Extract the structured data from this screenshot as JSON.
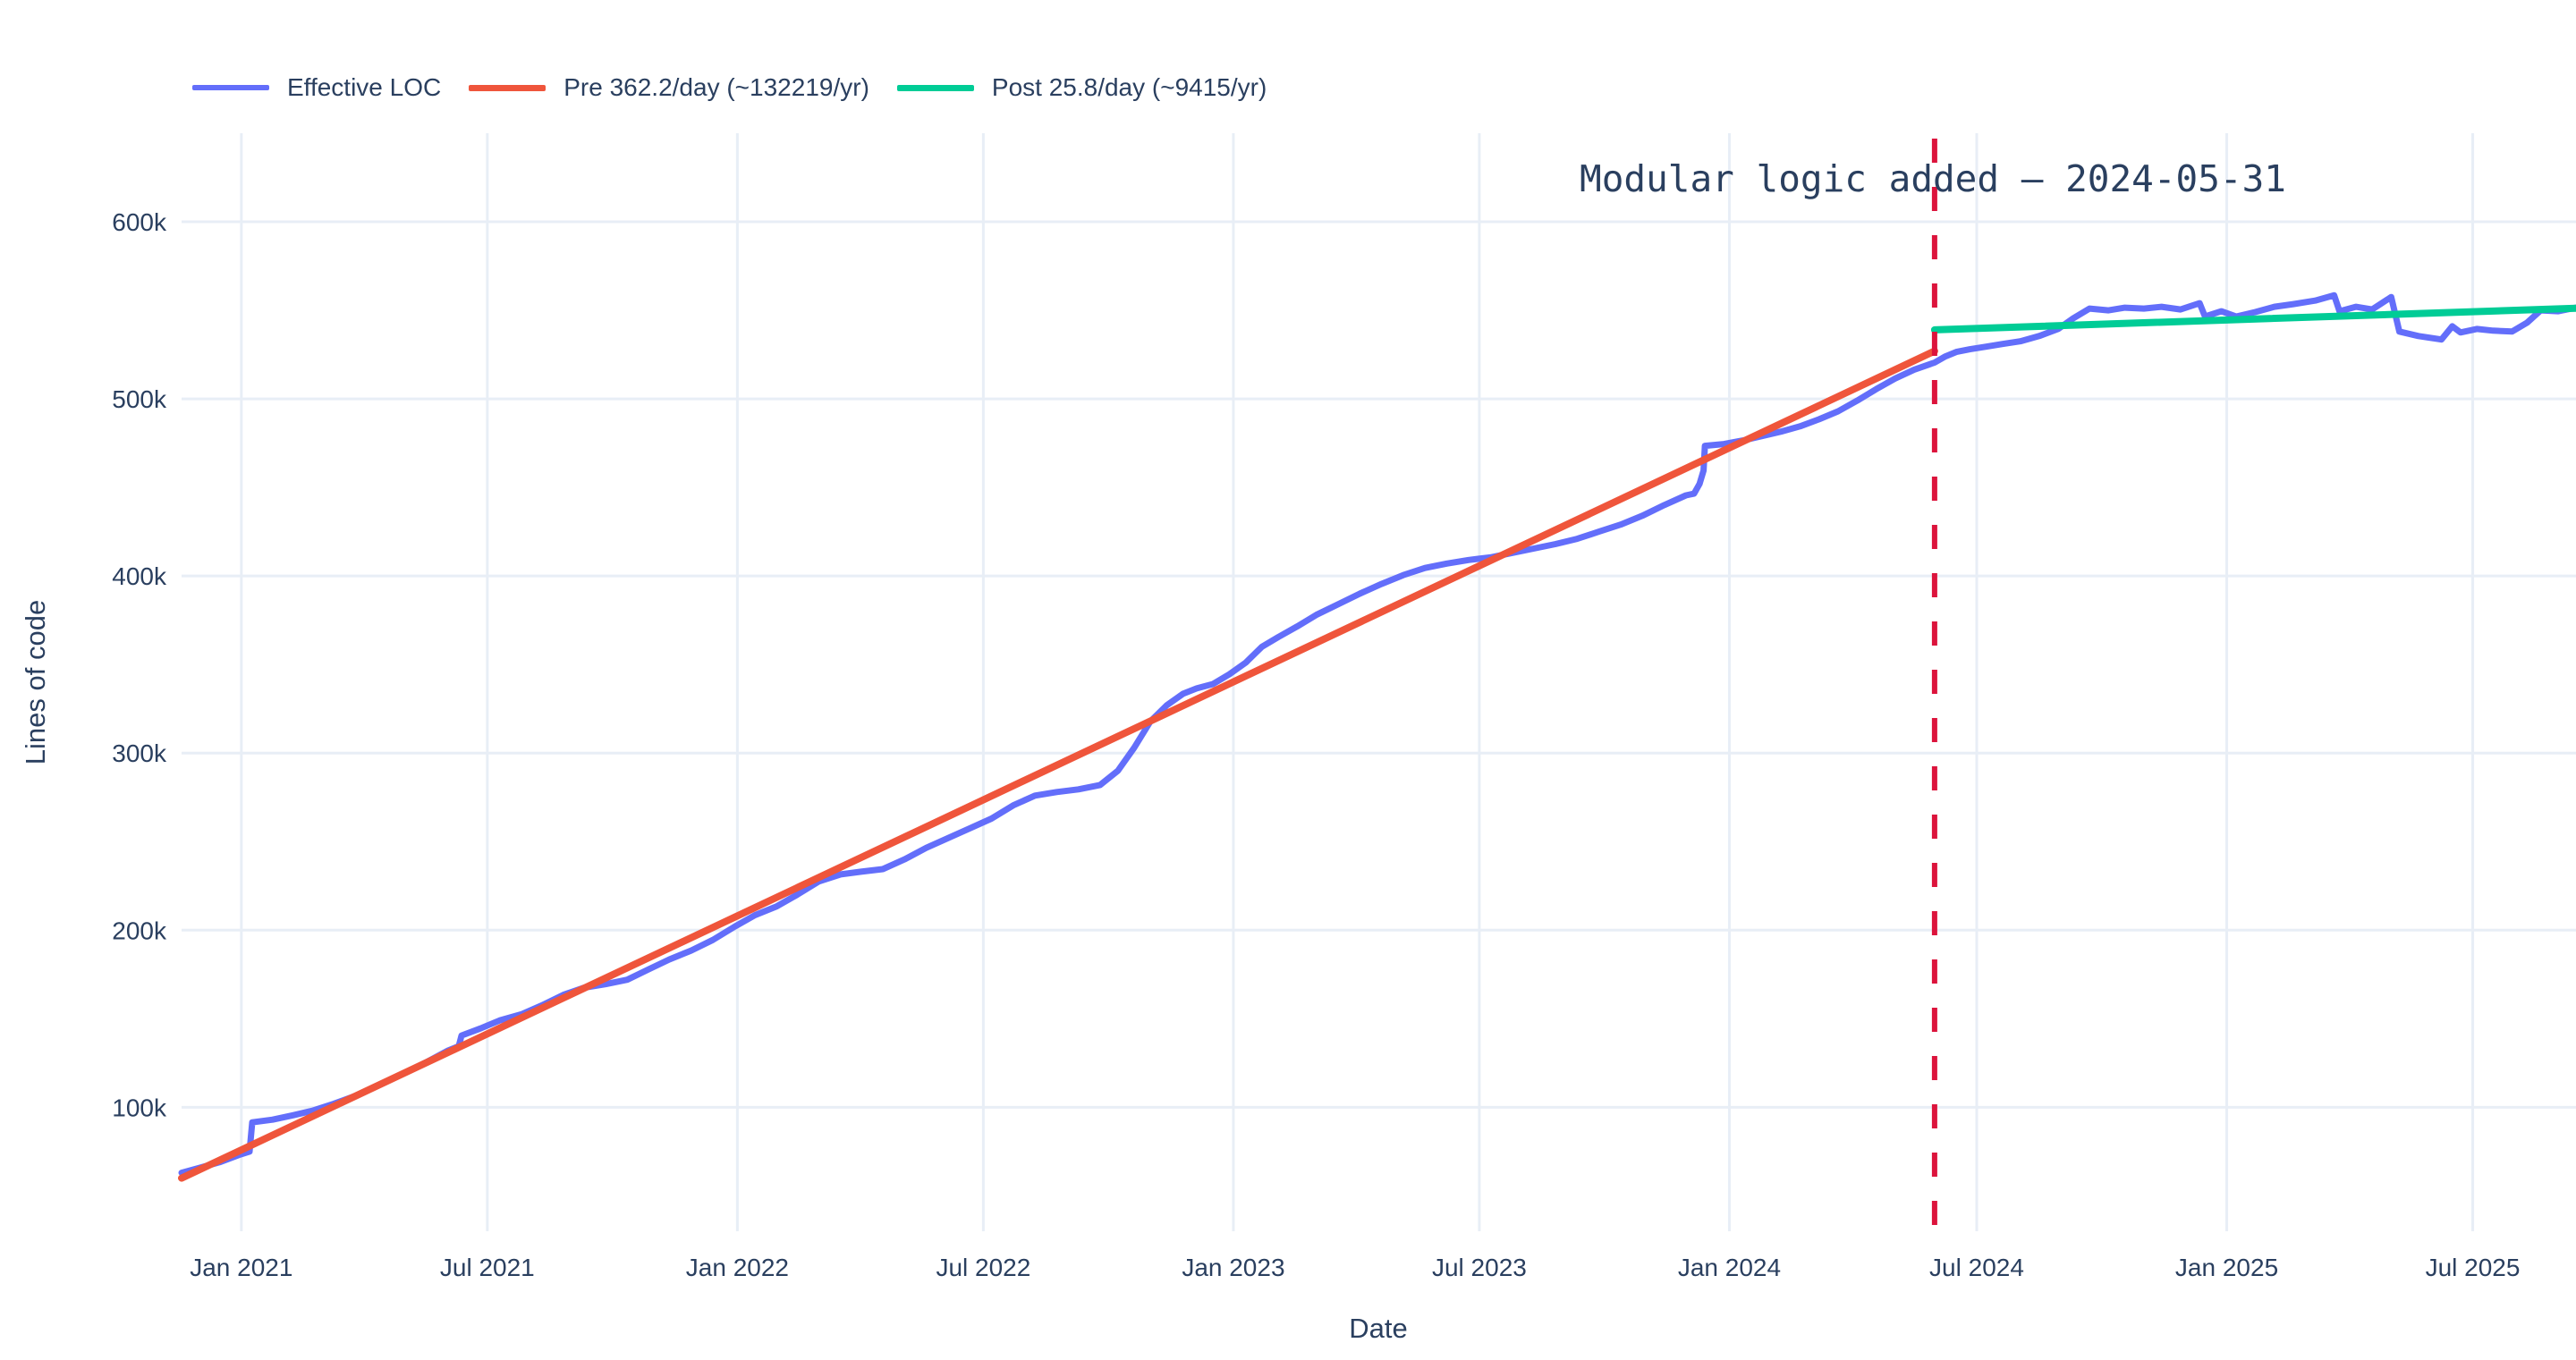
{
  "chart_data": {
    "type": "line",
    "annotation": {
      "text": "Modular logic added — 2024-05-31",
      "x_date": "2024-05-31"
    },
    "xlabel": "Date",
    "ylabel": "Lines of code",
    "x_range": [
      "2020-11-18",
      "2025-09-15"
    ],
    "ylim": [
      30000,
      650000
    ],
    "grid": true,
    "legend_position": "top-left-horizontal",
    "x_ticks": [
      {
        "date": "2021-01-01",
        "label": "Jan 2021"
      },
      {
        "date": "2021-07-01",
        "label": "Jul 2021"
      },
      {
        "date": "2022-01-01",
        "label": "Jan 2022"
      },
      {
        "date": "2022-07-01",
        "label": "Jul 2022"
      },
      {
        "date": "2023-01-01",
        "label": "Jan 2023"
      },
      {
        "date": "2023-07-01",
        "label": "Jul 2023"
      },
      {
        "date": "2024-01-01",
        "label": "Jan 2024"
      },
      {
        "date": "2024-07-01",
        "label": "Jul 2024"
      },
      {
        "date": "2025-01-01",
        "label": "Jan 2025"
      },
      {
        "date": "2025-07-01",
        "label": "Jul 2025"
      }
    ],
    "y_ticks": [
      {
        "value": 100000,
        "label": "100k"
      },
      {
        "value": 200000,
        "label": "200k"
      },
      {
        "value": 300000,
        "label": "300k"
      },
      {
        "value": 400000,
        "label": "400k"
      },
      {
        "value": 500000,
        "label": "500k"
      },
      {
        "value": 600000,
        "label": "600k"
      }
    ],
    "vline": {
      "date": "2024-05-31",
      "color": "#dc143c",
      "width": 6,
      "dash": "27 27"
    },
    "series": [
      {
        "name": "Effective LOC",
        "color": "#636efa",
        "width": 7,
        "points": [
          [
            "2020-11-18",
            63000
          ],
          [
            "2020-12-02",
            66000
          ],
          [
            "2020-12-16",
            69000
          ],
          [
            "2020-12-30",
            73000
          ],
          [
            "2021-01-07",
            75000
          ],
          [
            "2021-01-09",
            91500
          ],
          [
            "2021-01-24",
            93000
          ],
          [
            "2021-02-08",
            95500
          ],
          [
            "2021-02-22",
            98000
          ],
          [
            "2021-03-10",
            102000
          ],
          [
            "2021-03-26",
            106500
          ],
          [
            "2021-04-12",
            112500
          ],
          [
            "2021-04-30",
            119000
          ],
          [
            "2021-05-16",
            125000
          ],
          [
            "2021-06-02",
            132000
          ],
          [
            "2021-06-10",
            134500
          ],
          [
            "2021-06-12",
            140500
          ],
          [
            "2021-06-26",
            144500
          ],
          [
            "2021-07-10",
            149000
          ],
          [
            "2021-07-26",
            152500
          ],
          [
            "2021-08-10",
            157500
          ],
          [
            "2021-08-26",
            163500
          ],
          [
            "2021-09-10",
            167500
          ],
          [
            "2021-09-26",
            169500
          ],
          [
            "2021-10-12",
            172000
          ],
          [
            "2021-10-28",
            178000
          ],
          [
            "2021-11-12",
            183500
          ],
          [
            "2021-11-28",
            188500
          ],
          [
            "2021-12-14",
            194500
          ],
          [
            "2021-12-30",
            202000
          ],
          [
            "2022-01-14",
            208500
          ],
          [
            "2022-01-30",
            213500
          ],
          [
            "2022-02-14",
            220000
          ],
          [
            "2022-03-02",
            227500
          ],
          [
            "2022-03-18",
            231500
          ],
          [
            "2022-04-02",
            233000
          ],
          [
            "2022-04-18",
            234500
          ],
          [
            "2022-05-04",
            240000
          ],
          [
            "2022-05-20",
            246500
          ],
          [
            "2022-06-05",
            252000
          ],
          [
            "2022-06-21",
            257500
          ],
          [
            "2022-07-07",
            263000
          ],
          [
            "2022-07-23",
            270500
          ],
          [
            "2022-08-08",
            276000
          ],
          [
            "2022-08-24",
            278000
          ],
          [
            "2022-09-09",
            279500
          ],
          [
            "2022-09-25",
            282000
          ],
          [
            "2022-10-08",
            290000
          ],
          [
            "2022-10-20",
            303000
          ],
          [
            "2022-11-01",
            318000
          ],
          [
            "2022-11-13",
            327000
          ],
          [
            "2022-11-25",
            333500
          ],
          [
            "2022-12-05",
            336500
          ],
          [
            "2022-12-17",
            339000
          ],
          [
            "2022-12-29",
            344500
          ],
          [
            "2023-01-10",
            351000
          ],
          [
            "2023-01-22",
            360000
          ],
          [
            "2023-02-03",
            365500
          ],
          [
            "2023-02-17",
            371500
          ],
          [
            "2023-03-03",
            378000
          ],
          [
            "2023-03-19",
            384000
          ],
          [
            "2023-04-04",
            390000
          ],
          [
            "2023-04-20",
            395500
          ],
          [
            "2023-05-06",
            400500
          ],
          [
            "2023-05-22",
            404500
          ],
          [
            "2023-06-07",
            407000
          ],
          [
            "2023-06-23",
            409000
          ],
          [
            "2023-07-09",
            410500
          ],
          [
            "2023-07-25",
            413000
          ],
          [
            "2023-08-10",
            415500
          ],
          [
            "2023-08-26",
            418000
          ],
          [
            "2023-09-11",
            421000
          ],
          [
            "2023-09-27",
            425000
          ],
          [
            "2023-10-13",
            429000
          ],
          [
            "2023-10-29",
            434000
          ],
          [
            "2023-11-14",
            440000
          ],
          [
            "2023-11-30",
            445500
          ],
          [
            "2023-12-06",
            446500
          ],
          [
            "2023-12-10",
            452000
          ],
          [
            "2023-12-13",
            459500
          ],
          [
            "2023-12-14",
            473500
          ],
          [
            "2023-12-28",
            474500
          ],
          [
            "2024-01-11",
            476500
          ],
          [
            "2024-01-25",
            479000
          ],
          [
            "2024-02-08",
            481500
          ],
          [
            "2024-02-22",
            484500
          ],
          [
            "2024-03-07",
            488500
          ],
          [
            "2024-03-21",
            493000
          ],
          [
            "2024-04-04",
            499000
          ],
          [
            "2024-04-18",
            505500
          ],
          [
            "2024-05-02",
            511500
          ],
          [
            "2024-05-16",
            516500
          ],
          [
            "2024-05-31",
            520500
          ],
          [
            "2024-06-08",
            524000
          ],
          [
            "2024-06-16",
            526500
          ],
          [
            "2024-06-26",
            528000
          ],
          [
            "2024-07-08",
            529500
          ],
          [
            "2024-07-20",
            531000
          ],
          [
            "2024-08-02",
            532500
          ],
          [
            "2024-08-16",
            535500
          ],
          [
            "2024-08-30",
            539500
          ],
          [
            "2024-09-10",
            545500
          ],
          [
            "2024-09-22",
            551000
          ],
          [
            "2024-10-06",
            550000
          ],
          [
            "2024-10-18",
            551500
          ],
          [
            "2024-11-01",
            551000
          ],
          [
            "2024-11-14",
            552000
          ],
          [
            "2024-11-28",
            550500
          ],
          [
            "2024-12-12",
            554000
          ],
          [
            "2024-12-16",
            546500
          ],
          [
            "2024-12-28",
            549500
          ],
          [
            "2025-01-08",
            546500
          ],
          [
            "2025-01-22",
            549000
          ],
          [
            "2025-02-05",
            552000
          ],
          [
            "2025-02-19",
            553500
          ],
          [
            "2025-03-07",
            555500
          ],
          [
            "2025-03-21",
            558500
          ],
          [
            "2025-03-25",
            549500
          ],
          [
            "2025-04-06",
            552000
          ],
          [
            "2025-04-18",
            550500
          ],
          [
            "2025-05-02",
            557500
          ],
          [
            "2025-05-08",
            538000
          ],
          [
            "2025-05-22",
            535500
          ],
          [
            "2025-06-08",
            533500
          ],
          [
            "2025-06-16",
            541000
          ],
          [
            "2025-06-22",
            537500
          ],
          [
            "2025-07-04",
            539500
          ],
          [
            "2025-07-16",
            538500
          ],
          [
            "2025-07-30",
            538000
          ],
          [
            "2025-08-10",
            543000
          ],
          [
            "2025-08-20",
            550000
          ],
          [
            "2025-09-02",
            549500
          ],
          [
            "2025-09-15",
            551500
          ]
        ]
      },
      {
        "name": "Pre 362.2/day (~132219/yr)",
        "color": "#ef553b",
        "width": 8,
        "points": [
          [
            "2020-11-18",
            60000
          ],
          [
            "2024-05-31",
            527000
          ]
        ]
      },
      {
        "name": "Post 25.8/day (~9415/yr)",
        "color": "#00cc96",
        "width": 8,
        "points": [
          [
            "2024-05-31",
            539000
          ],
          [
            "2025-09-15",
            551200
          ]
        ]
      }
    ]
  },
  "colors": {
    "background": "#ffffff",
    "grid": "#e8eef6",
    "text": "#2a3f5f",
    "vline": "#dc143c"
  }
}
